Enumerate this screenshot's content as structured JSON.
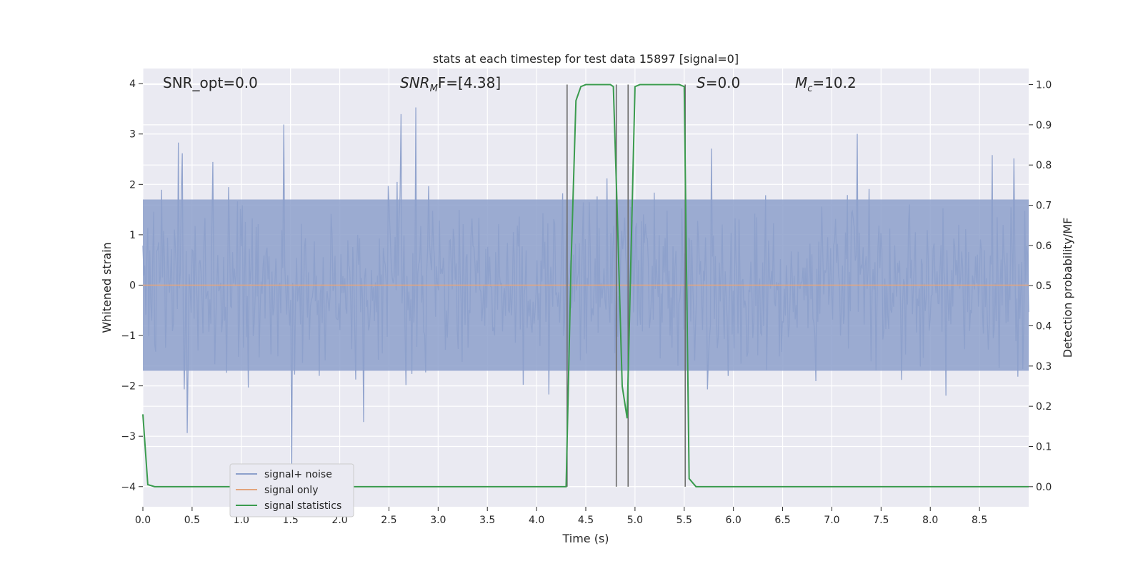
{
  "chart_data": {
    "type": "line",
    "title": "stats at each timestep for test data 15897 [signal=0]",
    "xlabel": "Time (s)",
    "ylabel_left": "Whitened strain",
    "ylabel_right": "Detection probability/MF",
    "xlim": [
      0.0,
      9.0
    ],
    "ylim_left": [
      -4.4,
      4.3
    ],
    "ylim_right": [
      -0.05,
      1.04
    ],
    "x_ticks": [
      "0.0",
      "0.5",
      "1.0",
      "1.5",
      "2.0",
      "2.5",
      "3.0",
      "3.5",
      "4.0",
      "4.5",
      "5.0",
      "5.5",
      "6.0",
      "6.5",
      "7.0",
      "7.5",
      "8.0",
      "8.5"
    ],
    "y_left_ticks": [
      "4",
      "3",
      "2",
      "1",
      "0",
      "−1",
      "−2",
      "−3",
      "−4"
    ],
    "y_right_ticks": [
      "1.0",
      "0.9",
      "0.8",
      "0.7",
      "0.6",
      "0.5",
      "0.4",
      "0.3",
      "0.2",
      "0.1",
      "0.0"
    ],
    "grid": true,
    "legend_position": "lower-left",
    "annotations": {
      "snr_opt": "SNR_opt=0.0",
      "snr_mf_name": "SNR",
      "snr_mf_sub": "M",
      "snr_mf_rest": "F=[4.38]",
      "s_name": "S",
      "s_rest": "=0.0",
      "mc_name": "M",
      "mc_sub": "c",
      "mc_rest": "=10.2"
    },
    "series": [
      {
        "name": "signal+ noise",
        "axis": "left",
        "color": "#8da0cb",
        "style": "noise",
        "envelope": {
          "typical_abs": 1.7,
          "peak_max": 3.9,
          "peak_min": -3.9
        },
        "samples": 900
      },
      {
        "name": "signal only",
        "axis": "left",
        "color": "#e3a47c",
        "x": [
          0.0,
          9.0
        ],
        "y": [
          0.0,
          0.0
        ]
      },
      {
        "name": "signal statistics",
        "axis": "right",
        "color": "#3a9b4e",
        "x": [
          0.0,
          0.05,
          0.12,
          0.5,
          1.0,
          2.0,
          3.0,
          4.0,
          4.3,
          4.35,
          4.4,
          4.45,
          4.5,
          4.6,
          4.75,
          4.78,
          4.82,
          4.87,
          4.92,
          5.0,
          5.05,
          5.2,
          5.45,
          5.5,
          5.55,
          5.62,
          6.0,
          7.0,
          8.0,
          9.0
        ],
        "y": [
          0.18,
          0.005,
          0.0,
          0.0,
          0.0,
          0.0,
          0.0,
          0.0,
          0.0,
          0.55,
          0.96,
          0.995,
          1.0,
          1.0,
          1.0,
          0.995,
          0.68,
          0.25,
          0.17,
          0.995,
          1.0,
          1.0,
          1.0,
          0.995,
          0.02,
          0.0,
          0.0,
          0.0,
          0.0,
          0.0
        ]
      }
    ],
    "vertical_lines": {
      "color": "#6b6b6b",
      "lines": [
        {
          "x": 4.31,
          "y_top": 1.0,
          "y_bottom": 0.0
        },
        {
          "x": 4.81,
          "y_top": 1.0,
          "y_bottom": 0.0
        },
        {
          "x": 4.93,
          "y_top": 1.0,
          "y_bottom": 0.0
        },
        {
          "x": 5.51,
          "y_top": 1.0,
          "y_bottom": 0.0
        }
      ]
    },
    "colors": {
      "plot_background": "#eaeaf2",
      "grid": "#ffffff"
    }
  }
}
